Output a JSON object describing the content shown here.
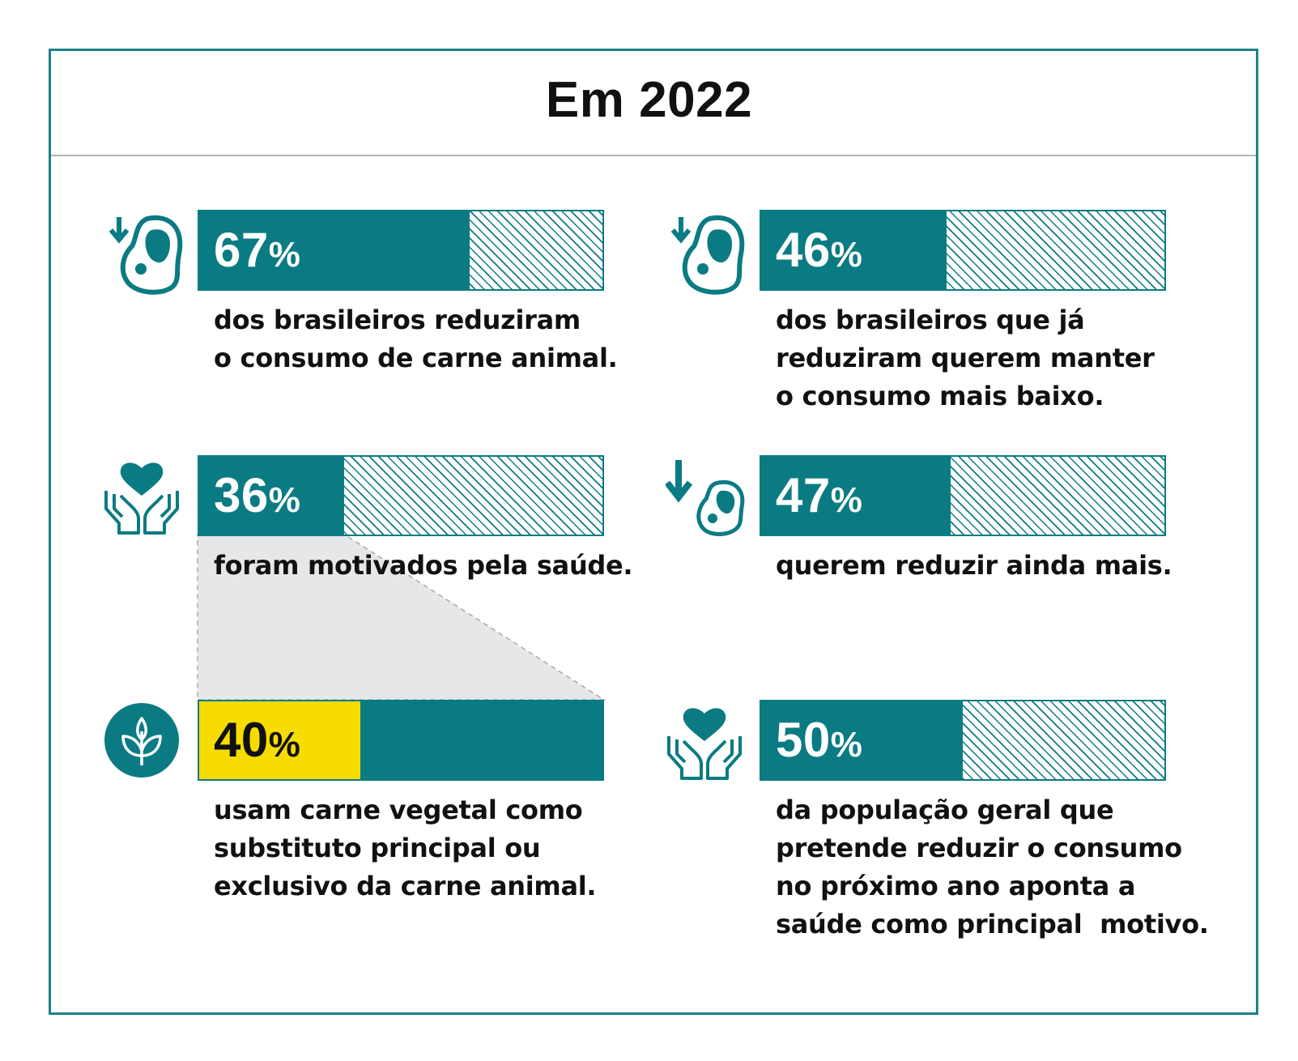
{
  "title": "Em 2022",
  "colors": {
    "teal": "#0b7b83",
    "highlight": "#f7dc00",
    "frame": "#1b8288",
    "funnel": "#e6e7e8"
  },
  "chart_data": {
    "type": "bar",
    "title": "Em 2022",
    "items": [
      {
        "value": 67,
        "label": "67",
        "unit": "%",
        "icon": "meat-down-icon",
        "text": "dos brasileiros reduziram\no consumo de carne animal."
      },
      {
        "value": 46,
        "label": "46",
        "unit": "%",
        "icon": "meat-down-icon",
        "text": "dos brasileiros que já\nreduziram querem manter\no consumo mais baixo."
      },
      {
        "value": 36,
        "label": "36",
        "unit": "%",
        "icon": "heart-hands-icon",
        "text": "foram motivados pela saúde."
      },
      {
        "value": 47,
        "label": "47",
        "unit": "%",
        "icon": "arrow-down-meat-icon",
        "text": "querem reduzir ainda mais."
      },
      {
        "value": 40,
        "label": "40",
        "unit": "%",
        "icon": "leaf-circle-icon",
        "text": "usam carne vegetal como\nsubstituto principal ou\nexclusivo da carne animal.",
        "subset_of": 2
      },
      {
        "value": 50,
        "label": "50",
        "unit": "%",
        "icon": "heart-hands-icon",
        "text": "da população geral que\npretende reduzir o consumo\nno próximo ano aponta a\nsaúde como principal  motivo."
      }
    ]
  }
}
